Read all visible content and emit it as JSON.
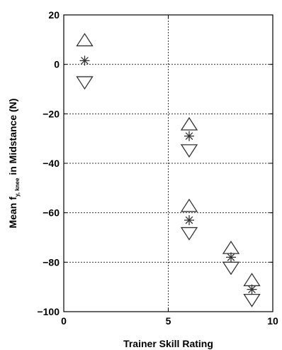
{
  "chart_data": {
    "type": "scatter",
    "title": "",
    "xlabel": "Trainer Skill Rating",
    "ylabel": {
      "prefix": "Mean f",
      "subscript": "y, knee",
      "suffix": " in Midstance (N)"
    },
    "xlim": [
      0,
      10
    ],
    "ylim": [
      -100,
      20
    ],
    "xticks": [
      "0",
      "5",
      "10"
    ],
    "yticks": [
      "20",
      "0",
      "−20",
      "−40",
      "−60",
      "−80",
      "−100"
    ],
    "grid": {
      "x": [
        5
      ],
      "y": [
        0,
        -20,
        -40,
        -60,
        -80
      ]
    },
    "series": [
      {
        "marker": "asterisk-with-up-down-triangles",
        "points": [
          {
            "x": 1,
            "mean": 1.5,
            "upper": 7.5,
            "lower": -5
          },
          {
            "x": 6,
            "mean": -29,
            "upper": -26.5,
            "lower": -32.5
          },
          {
            "x": 6,
            "mean": -63,
            "upper": -59.5,
            "lower": -66
          },
          {
            "x": 8,
            "mean": -78,
            "upper": -76.5,
            "lower": -80
          },
          {
            "x": 9,
            "mean": -91,
            "upper": -89.5,
            "lower": -93
          }
        ]
      }
    ],
    "colors": {
      "marks": "#333333",
      "axis": "#000000",
      "grid": "#333333"
    }
  }
}
